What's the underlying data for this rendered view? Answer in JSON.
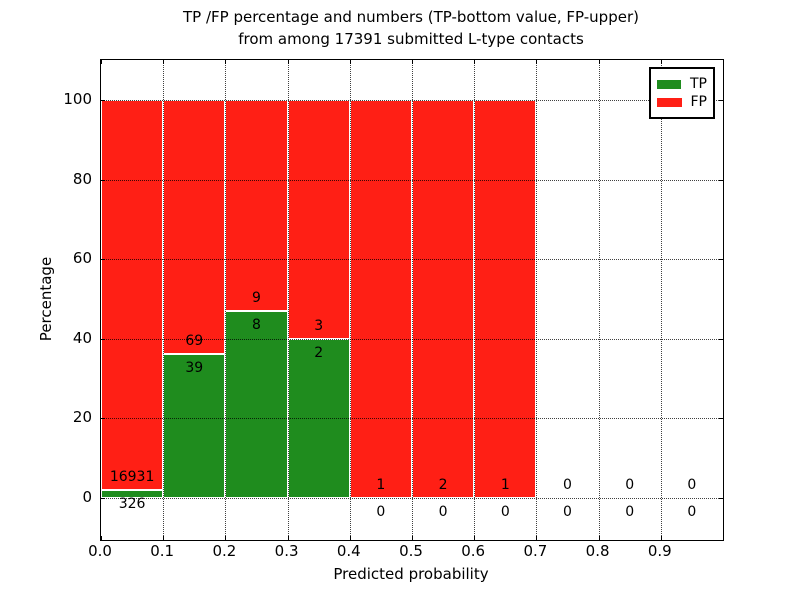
{
  "title": {
    "line1": "TP /FP percentage and numbers (TP-bottom value, FP-upper)",
    "line2": "from among 17391 submitted L-type contacts"
  },
  "legend": {
    "items": [
      {
        "label": "TP",
        "color": "#1f8c1e"
      },
      {
        "label": "FP",
        "color": "#ff1f15"
      }
    ]
  },
  "chart_data": {
    "type": "bar",
    "stacked": true,
    "normalized_to_percent": true,
    "title": "TP /FP percentage and numbers (TP-bottom value, FP-upper) from among 17391 submitted L-type contacts",
    "total_submitted": 17391,
    "xlabel": "Predicted probability",
    "ylabel": "Percentage",
    "xlim": [
      0.0,
      1.0
    ],
    "ylim": [
      -10.5,
      110.5
    ],
    "grid": true,
    "legend_position": "upper right",
    "xticks": [
      "0.0",
      "0.1",
      "0.2",
      "0.3",
      "0.4",
      "0.5",
      "0.6",
      "0.7",
      "0.8",
      "0.9"
    ],
    "yticks": [
      0,
      20,
      40,
      60,
      80,
      100
    ],
    "colors": {
      "tp": "#1f8c1e",
      "fp": "#ff1f15"
    },
    "bins": [
      {
        "range": [
          0.0,
          0.1
        ],
        "tp": 326,
        "fp": 16931,
        "tp_pct": 1.89,
        "fp_pct": 98.11
      },
      {
        "range": [
          0.1,
          0.2
        ],
        "tp": 39,
        "fp": 69,
        "tp_pct": 36.11,
        "fp_pct": 63.89
      },
      {
        "range": [
          0.2,
          0.3
        ],
        "tp": 8,
        "fp": 9,
        "tp_pct": 47.06,
        "fp_pct": 52.94
      },
      {
        "range": [
          0.3,
          0.4
        ],
        "tp": 2,
        "fp": 3,
        "tp_pct": 40.0,
        "fp_pct": 60.0
      },
      {
        "range": [
          0.4,
          0.5
        ],
        "tp": 0,
        "fp": 1,
        "tp_pct": 0.0,
        "fp_pct": 100.0
      },
      {
        "range": [
          0.5,
          0.6
        ],
        "tp": 0,
        "fp": 2,
        "tp_pct": 0.0,
        "fp_pct": 100.0
      },
      {
        "range": [
          0.6,
          0.7
        ],
        "tp": 0,
        "fp": 1,
        "tp_pct": 0.0,
        "fp_pct": 100.0
      },
      {
        "range": [
          0.7,
          0.8
        ],
        "tp": 0,
        "fp": 0,
        "tp_pct": null,
        "fp_pct": null
      },
      {
        "range": [
          0.8,
          0.9
        ],
        "tp": 0,
        "fp": 0,
        "tp_pct": null,
        "fp_pct": null
      },
      {
        "range": [
          0.9,
          1.0
        ],
        "tp": 0,
        "fp": 0,
        "tp_pct": null,
        "fp_pct": null
      }
    ]
  }
}
